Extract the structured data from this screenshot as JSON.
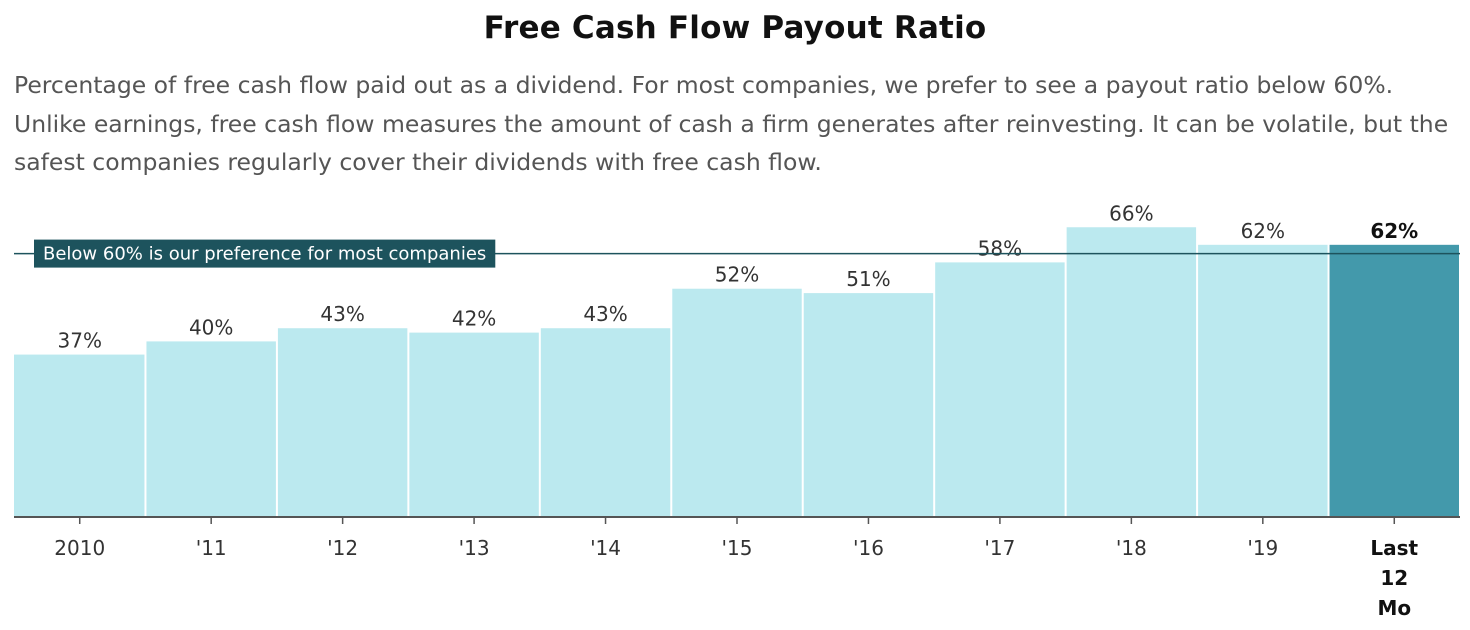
{
  "chart_data": {
    "type": "bar",
    "title": "Free Cash Flow Payout Ratio",
    "subtitle": "Percentage of free cash flow paid out as a dividend. For most companies, we prefer to see a payout ratio below 60%. Unlike earnings, free cash flow measures the amount of cash a firm generates after reinvesting. It can be volatile, but the safest companies regularly cover their dividends with free cash flow.",
    "categories": [
      "2010",
      "'11",
      "'12",
      "'13",
      "'14",
      "'15",
      "'16",
      "'17",
      "'18",
      "'19",
      "Last 12 Mo"
    ],
    "values": [
      37,
      40,
      43,
      42,
      43,
      52,
      51,
      58,
      66,
      62,
      62
    ],
    "value_labels": [
      "37%",
      "40%",
      "43%",
      "42%",
      "43%",
      "52%",
      "51%",
      "58%",
      "66%",
      "62%",
      "62%"
    ],
    "ylim": [
      0,
      73
    ],
    "reference_line": {
      "value": 60,
      "label": "Below 60% is our preference for most companies"
    },
    "colors": {
      "bar": "#bbe9ef",
      "highlight": "#4399ab",
      "reference": "#1d535d",
      "axis": "#555555"
    }
  }
}
